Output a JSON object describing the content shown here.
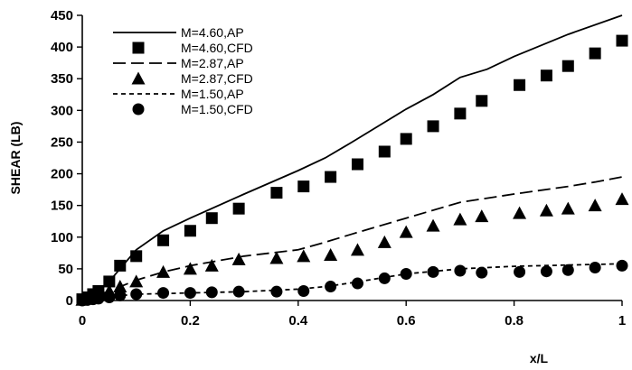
{
  "chart_data": {
    "type": "scatter",
    "title": "",
    "xlabel": "x/L",
    "ylabel": "SHEAR (LB)",
    "xlim": [
      0,
      1
    ],
    "ylim": [
      0,
      450
    ],
    "xticks": [
      0,
      0.2,
      0.4,
      0.6,
      0.8,
      1
    ],
    "xtick_labels": [
      "0",
      "0.2",
      "0.4",
      "0.6",
      "0.8",
      "1"
    ],
    "yticks": [
      0,
      50,
      100,
      150,
      200,
      250,
      300,
      350,
      400,
      450
    ],
    "ytick_labels": [
      "0",
      "50",
      "100",
      "150",
      "200",
      "250",
      "300",
      "350",
      "400",
      "450"
    ],
    "grid": false,
    "legend_position": "top-left",
    "series": [
      {
        "name": "M=4.60,AP",
        "kind": "line",
        "dash": "solid",
        "color": "#000000",
        "x": [
          0,
          0.02,
          0.05,
          0.1,
          0.15,
          0.2,
          0.3,
          0.4,
          0.45,
          0.5,
          0.6,
          0.65,
          0.7,
          0.75,
          0.8,
          0.9,
          1.0
        ],
        "y": [
          0,
          10,
          30,
          80,
          110,
          130,
          168,
          205,
          225,
          250,
          302,
          325,
          352,
          365,
          385,
          420,
          450
        ]
      },
      {
        "name": "M=4.60,CFD",
        "kind": "marker",
        "marker": "square",
        "color": "#000000",
        "x": [
          0,
          0.01,
          0.02,
          0.03,
          0.05,
          0.07,
          0.1,
          0.15,
          0.2,
          0.24,
          0.29,
          0.36,
          0.41,
          0.46,
          0.51,
          0.56,
          0.6,
          0.65,
          0.7,
          0.74,
          0.81,
          0.86,
          0.9,
          0.95,
          1.0
        ],
        "y": [
          2,
          5,
          10,
          15,
          30,
          55,
          70,
          95,
          110,
          130,
          145,
          170,
          180,
          195,
          215,
          235,
          255,
          275,
          295,
          315,
          340,
          355,
          370,
          390,
          410
        ]
      },
      {
        "name": "M=2.87,AP",
        "kind": "line",
        "dash": "long",
        "color": "#000000",
        "x": [
          0,
          0.05,
          0.1,
          0.15,
          0.2,
          0.3,
          0.4,
          0.45,
          0.5,
          0.6,
          0.7,
          0.8,
          0.9,
          0.95,
          1.0
        ],
        "y": [
          0,
          15,
          32,
          45,
          55,
          70,
          80,
          92,
          105,
          130,
          155,
          168,
          180,
          187,
          195
        ]
      },
      {
        "name": "M=2.87,CFD",
        "kind": "marker",
        "marker": "triangle",
        "color": "#000000",
        "x": [
          0,
          0.01,
          0.02,
          0.03,
          0.05,
          0.07,
          0.1,
          0.15,
          0.2,
          0.24,
          0.29,
          0.36,
          0.41,
          0.46,
          0.51,
          0.56,
          0.6,
          0.65,
          0.7,
          0.74,
          0.81,
          0.86,
          0.9,
          0.95,
          1.0
        ],
        "y": [
          1,
          3,
          5,
          10,
          15,
          22,
          30,
          45,
          50,
          55,
          65,
          67,
          70,
          72,
          80,
          92,
          108,
          118,
          128,
          133,
          138,
          142,
          145,
          150,
          160
        ]
      },
      {
        "name": "M=1.50,AP",
        "kind": "line",
        "dash": "short",
        "color": "#000000",
        "x": [
          0,
          0.05,
          0.1,
          0.2,
          0.3,
          0.4,
          0.45,
          0.5,
          0.6,
          0.7,
          0.8,
          0.9,
          1.0
        ],
        "y": [
          0,
          6,
          10,
          12,
          14,
          18,
          22,
          28,
          42,
          50,
          54,
          56,
          58
        ]
      },
      {
        "name": "M=1.50,CFD",
        "kind": "marker",
        "marker": "circle",
        "color": "#000000",
        "x": [
          0,
          0.01,
          0.02,
          0.03,
          0.05,
          0.07,
          0.1,
          0.15,
          0.2,
          0.24,
          0.29,
          0.36,
          0.41,
          0.46,
          0.51,
          0.56,
          0.6,
          0.65,
          0.7,
          0.74,
          0.81,
          0.86,
          0.9,
          0.95,
          1.0
        ],
        "y": [
          0,
          1,
          2,
          3,
          5,
          8,
          10,
          12,
          12,
          13,
          14,
          14,
          15,
          22,
          27,
          35,
          42,
          45,
          47,
          44,
          45,
          46,
          48,
          52,
          55
        ]
      }
    ]
  }
}
